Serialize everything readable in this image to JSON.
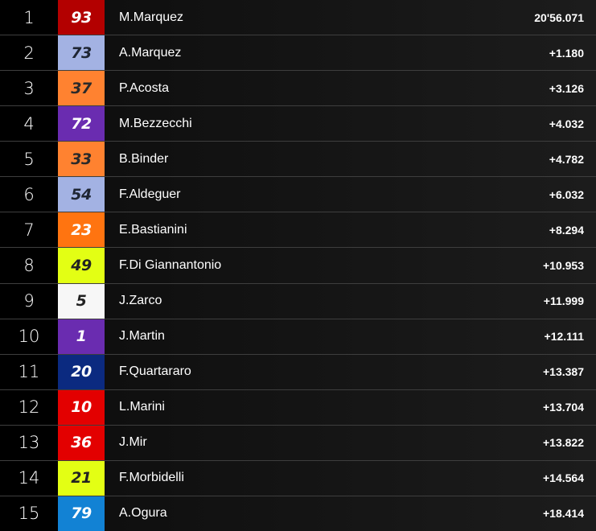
{
  "results": [
    {
      "pos": "1",
      "number": "93",
      "rider": "M.Marquez",
      "time": "20'56.071",
      "color": "#b30000",
      "text_color": "#ffffff"
    },
    {
      "pos": "2",
      "number": "73",
      "rider": "A.Marquez",
      "time": "+1.180",
      "color": "#a3b2e3",
      "text_color": "#1e2533"
    },
    {
      "pos": "3",
      "number": "37",
      "rider": "P.Acosta",
      "time": "+3.126",
      "color": "#ff8230",
      "text_color": "#2a2a2a"
    },
    {
      "pos": "4",
      "number": "72",
      "rider": "M.Bezzecchi",
      "time": "+4.032",
      "color": "#6a2cb0",
      "text_color": "#ffffff"
    },
    {
      "pos": "5",
      "number": "33",
      "rider": "B.Binder",
      "time": "+4.782",
      "color": "#ff8230",
      "text_color": "#2a2a2a"
    },
    {
      "pos": "6",
      "number": "54",
      "rider": "F.Aldeguer",
      "time": "+6.032",
      "color": "#a3b2e3",
      "text_color": "#1e2533"
    },
    {
      "pos": "7",
      "number": "23",
      "rider": "E.Bastianini",
      "time": "+8.294",
      "color": "#ff7410",
      "text_color": "#ffffff"
    },
    {
      "pos": "8",
      "number": "49",
      "rider": "F.Di Giannantonio",
      "time": "+10.953",
      "color": "#e3ff14",
      "text_color": "#222222"
    },
    {
      "pos": "9",
      "number": "5",
      "rider": "J.Zarco",
      "time": "+11.999",
      "color": "#f7f7f7",
      "text_color": "#222222"
    },
    {
      "pos": "10",
      "number": "1",
      "rider": "J.Martin",
      "time": "+12.111",
      "color": "#6a2cb0",
      "text_color": "#ffffff"
    },
    {
      "pos": "11",
      "number": "20",
      "rider": "F.Quartararo",
      "time": "+13.387",
      "color": "#0b2a80",
      "text_color": "#ffffff"
    },
    {
      "pos": "12",
      "number": "10",
      "rider": "L.Marini",
      "time": "+13.704",
      "color": "#e30000",
      "text_color": "#ffffff"
    },
    {
      "pos": "13",
      "number": "36",
      "rider": "J.Mir",
      "time": "+13.822",
      "color": "#e30000",
      "text_color": "#ffffff"
    },
    {
      "pos": "14",
      "number": "21",
      "rider": "F.Morbidelli",
      "time": "+14.564",
      "color": "#e3ff14",
      "text_color": "#222222"
    },
    {
      "pos": "15",
      "number": "79",
      "rider": "A.Ogura",
      "time": "+18.414",
      "color": "#1282d4",
      "text_color": "#ffffff"
    }
  ]
}
